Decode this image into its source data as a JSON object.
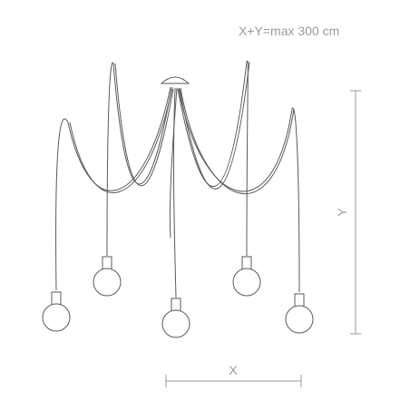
{
  "spec_text": "X+Y=max 300 cm",
  "dimension_x_label": "X",
  "dimension_y_label": "Y"
}
